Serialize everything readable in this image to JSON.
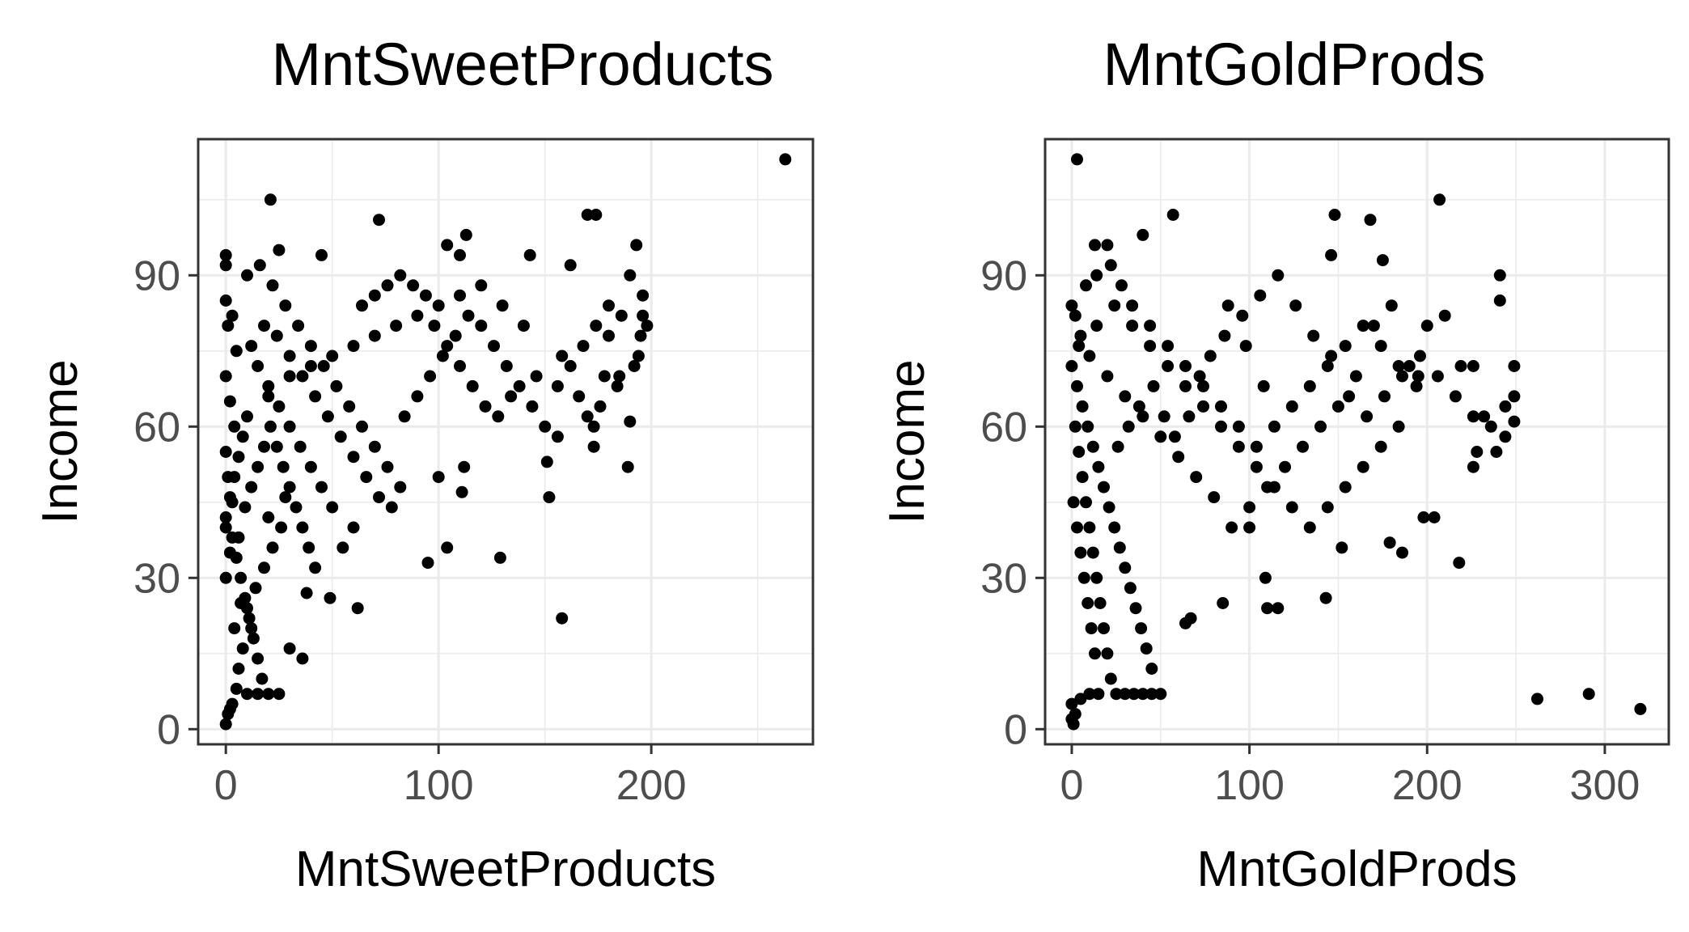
{
  "chart_data": [
    {
      "type": "scatter",
      "title": "MntSweetProducts",
      "xlabel": "MntSweetProducts",
      "ylabel": "Income",
      "xlim": [
        -13,
        276
      ],
      "ylim": [
        -3,
        117
      ],
      "x_ticks": [
        0,
        100,
        200
      ],
      "y_ticks": [
        0,
        30,
        60,
        90
      ],
      "grid": true,
      "point_color": "#000000",
      "points": [
        [
          263,
          113
        ],
        [
          21,
          105
        ],
        [
          72,
          101
        ],
        [
          170,
          102
        ],
        [
          174,
          102
        ],
        [
          0,
          94
        ],
        [
          0,
          92
        ],
        [
          25,
          95
        ],
        [
          45,
          94
        ],
        [
          113,
          98
        ],
        [
          104,
          96
        ],
        [
          110,
          94
        ],
        [
          143,
          94
        ],
        [
          162,
          92
        ],
        [
          193,
          96
        ],
        [
          190,
          90
        ],
        [
          196,
          86
        ],
        [
          196,
          82
        ],
        [
          180,
          84
        ],
        [
          195,
          78
        ],
        [
          194,
          74
        ],
        [
          178,
          70
        ],
        [
          185,
          70
        ],
        [
          190,
          61
        ],
        [
          189,
          52
        ],
        [
          173,
          56
        ],
        [
          173,
          60
        ],
        [
          170,
          62
        ],
        [
          156,
          58
        ],
        [
          151,
          53
        ],
        [
          152,
          46
        ],
        [
          158,
          22
        ],
        [
          129,
          34
        ],
        [
          104,
          36
        ],
        [
          95,
          33
        ],
        [
          111,
          47
        ],
        [
          100,
          50
        ],
        [
          112,
          52
        ],
        [
          62,
          24
        ],
        [
          49,
          26
        ],
        [
          38,
          27
        ],
        [
          36,
          14
        ],
        [
          30,
          16
        ],
        [
          25,
          7
        ],
        [
          20,
          7
        ],
        [
          15,
          7
        ],
        [
          10,
          7
        ],
        [
          5,
          8
        ],
        [
          3,
          5
        ],
        [
          2,
          4
        ],
        [
          1,
          3
        ],
        [
          0,
          1
        ],
        [
          6,
          12
        ],
        [
          8,
          16
        ],
        [
          12,
          20
        ],
        [
          4,
          20
        ],
        [
          7,
          25
        ],
        [
          0,
          30
        ],
        [
          2,
          35
        ],
        [
          0,
          40
        ],
        [
          3,
          45
        ],
        [
          1,
          50
        ],
        [
          0,
          55
        ],
        [
          4,
          60
        ],
        [
          2,
          65
        ],
        [
          0,
          70
        ],
        [
          5,
          75
        ],
        [
          1,
          80
        ],
        [
          3,
          82
        ],
        [
          0,
          85
        ],
        [
          10,
          90
        ],
        [
          16,
          92
        ],
        [
          22,
          88
        ],
        [
          28,
          84
        ],
        [
          34,
          80
        ],
        [
          40,
          76
        ],
        [
          46,
          72
        ],
        [
          52,
          68
        ],
        [
          58,
          64
        ],
        [
          64,
          60
        ],
        [
          70,
          56
        ],
        [
          76,
          52
        ],
        [
          82,
          48
        ],
        [
          60,
          40
        ],
        [
          55,
          36
        ],
        [
          50,
          44
        ],
        [
          45,
          48
        ],
        [
          40,
          52
        ],
        [
          35,
          56
        ],
        [
          30,
          60
        ],
        [
          25,
          64
        ],
        [
          20,
          68
        ],
        [
          15,
          72
        ],
        [
          12,
          76
        ],
        [
          18,
          80
        ],
        [
          24,
          78
        ],
        [
          30,
          74
        ],
        [
          36,
          70
        ],
        [
          42,
          66
        ],
        [
          48,
          62
        ],
        [
          54,
          58
        ],
        [
          60,
          54
        ],
        [
          66,
          50
        ],
        [
          72,
          46
        ],
        [
          78,
          44
        ],
        [
          84,
          62
        ],
        [
          90,
          66
        ],
        [
          96,
          70
        ],
        [
          102,
          74
        ],
        [
          108,
          78
        ],
        [
          114,
          82
        ],
        [
          120,
          80
        ],
        [
          126,
          76
        ],
        [
          132,
          72
        ],
        [
          138,
          68
        ],
        [
          144,
          64
        ],
        [
          150,
          60
        ],
        [
          156,
          68
        ],
        [
          162,
          72
        ],
        [
          168,
          76
        ],
        [
          174,
          80
        ],
        [
          180,
          78
        ],
        [
          186,
          82
        ],
        [
          140,
          80
        ],
        [
          130,
          84
        ],
        [
          120,
          88
        ],
        [
          110,
          86
        ],
        [
          100,
          84
        ],
        [
          90,
          82
        ],
        [
          80,
          80
        ],
        [
          70,
          78
        ],
        [
          60,
          76
        ],
        [
          50,
          74
        ],
        [
          40,
          72
        ],
        [
          30,
          70
        ],
        [
          20,
          66
        ],
        [
          10,
          62
        ],
        [
          8,
          58
        ],
        [
          6,
          54
        ],
        [
          4,
          50
        ],
        [
          2,
          46
        ],
        [
          0,
          42
        ],
        [
          3,
          38
        ],
        [
          5,
          34
        ],
        [
          7,
          30
        ],
        [
          9,
          26
        ],
        [
          11,
          22
        ],
        [
          13,
          18
        ],
        [
          15,
          14
        ],
        [
          17,
          10
        ],
        [
          6,
          38
        ],
        [
          9,
          44
        ],
        [
          12,
          48
        ],
        [
          15,
          52
        ],
        [
          18,
          56
        ],
        [
          21,
          60
        ],
        [
          24,
          56
        ],
        [
          27,
          52
        ],
        [
          30,
          48
        ],
        [
          33,
          44
        ],
        [
          36,
          40
        ],
        [
          39,
          36
        ],
        [
          42,
          32
        ],
        [
          26,
          40
        ],
        [
          22,
          36
        ],
        [
          18,
          32
        ],
        [
          14,
          28
        ],
        [
          10,
          24
        ],
        [
          20,
          42
        ],
        [
          28,
          46
        ],
        [
          64,
          84
        ],
        [
          70,
          86
        ],
        [
          76,
          88
        ],
        [
          82,
          90
        ],
        [
          88,
          88
        ],
        [
          94,
          86
        ],
        [
          98,
          80
        ],
        [
          104,
          76
        ],
        [
          110,
          72
        ],
        [
          116,
          68
        ],
        [
          122,
          64
        ],
        [
          128,
          62
        ],
        [
          134,
          66
        ],
        [
          146,
          70
        ],
        [
          158,
          74
        ],
        [
          166,
          66
        ],
        [
          176,
          64
        ],
        [
          184,
          68
        ],
        [
          192,
          72
        ],
        [
          198,
          80
        ]
      ]
    },
    {
      "type": "scatter",
      "title": "MntGoldProds",
      "xlabel": "MntGoldProds",
      "ylabel": "Income",
      "xlim": [
        -15,
        336
      ],
      "ylim": [
        -3,
        117
      ],
      "x_ticks": [
        0,
        100,
        200,
        300
      ],
      "y_ticks": [
        0,
        30,
        60,
        90
      ],
      "grid": true,
      "point_color": "#000000",
      "points": [
        [
          3,
          113
        ],
        [
          207,
          105
        ],
        [
          148,
          102
        ],
        [
          168,
          101
        ],
        [
          57,
          102
        ],
        [
          13,
          96
        ],
        [
          20,
          96
        ],
        [
          40,
          98
        ],
        [
          146,
          94
        ],
        [
          175,
          93
        ],
        [
          241,
          90
        ],
        [
          241,
          85
        ],
        [
          249,
          72
        ],
        [
          249,
          66
        ],
        [
          249,
          61
        ],
        [
          239,
          55
        ],
        [
          244,
          64
        ],
        [
          219,
          72
        ],
        [
          226,
          72
        ],
        [
          232,
          62
        ],
        [
          228,
          55
        ],
        [
          226,
          52
        ],
        [
          218,
          33
        ],
        [
          204,
          42
        ],
        [
          198,
          42
        ],
        [
          186,
          35
        ],
        [
          179,
          37
        ],
        [
          152,
          36
        ],
        [
          143,
          26
        ],
        [
          116,
          24
        ],
        [
          110,
          24
        ],
        [
          109,
          30
        ],
        [
          100,
          40
        ],
        [
          85,
          25
        ],
        [
          67,
          22
        ],
        [
          64,
          21
        ],
        [
          50,
          7
        ],
        [
          45,
          7
        ],
        [
          40,
          7
        ],
        [
          35,
          7
        ],
        [
          30,
          7
        ],
        [
          25,
          7
        ],
        [
          15,
          7
        ],
        [
          10,
          7
        ],
        [
          5,
          6
        ],
        [
          2,
          3
        ],
        [
          1,
          1
        ],
        [
          0,
          2
        ],
        [
          0,
          5
        ],
        [
          262,
          6
        ],
        [
          291,
          7
        ],
        [
          320,
          4
        ],
        [
          195,
          70
        ],
        [
          190,
          72
        ],
        [
          200,
          80
        ],
        [
          210,
          82
        ],
        [
          180,
          84
        ],
        [
          170,
          80
        ],
        [
          160,
          70
        ],
        [
          150,
          64
        ],
        [
          140,
          60
        ],
        [
          130,
          56
        ],
        [
          120,
          52
        ],
        [
          110,
          48
        ],
        [
          100,
          44
        ],
        [
          90,
          40
        ],
        [
          80,
          46
        ],
        [
          70,
          50
        ],
        [
          60,
          54
        ],
        [
          50,
          58
        ],
        [
          40,
          62
        ],
        [
          30,
          66
        ],
        [
          20,
          70
        ],
        [
          10,
          74
        ],
        [
          5,
          78
        ],
        [
          2,
          82
        ],
        [
          0,
          84
        ],
        [
          8,
          88
        ],
        [
          14,
          90
        ],
        [
          22,
          92
        ],
        [
          28,
          88
        ],
        [
          34,
          84
        ],
        [
          44,
          80
        ],
        [
          54,
          76
        ],
        [
          64,
          72
        ],
        [
          74,
          68
        ],
        [
          84,
          64
        ],
        [
          94,
          60
        ],
        [
          104,
          56
        ],
        [
          114,
          60
        ],
        [
          124,
          64
        ],
        [
          134,
          68
        ],
        [
          144,
          72
        ],
        [
          154,
          76
        ],
        [
          164,
          80
        ],
        [
          174,
          76
        ],
        [
          184,
          72
        ],
        [
          194,
          68
        ],
        [
          184,
          60
        ],
        [
          174,
          56
        ],
        [
          164,
          52
        ],
        [
          154,
          48
        ],
        [
          144,
          44
        ],
        [
          134,
          40
        ],
        [
          124,
          44
        ],
        [
          114,
          48
        ],
        [
          104,
          52
        ],
        [
          94,
          56
        ],
        [
          84,
          60
        ],
        [
          74,
          64
        ],
        [
          64,
          68
        ],
        [
          54,
          72
        ],
        [
          44,
          76
        ],
        [
          34,
          80
        ],
        [
          24,
          84
        ],
        [
          14,
          80
        ],
        [
          4,
          76
        ],
        [
          0,
          72
        ],
        [
          3,
          68
        ],
        [
          6,
          64
        ],
        [
          9,
          60
        ],
        [
          12,
          56
        ],
        [
          15,
          52
        ],
        [
          18,
          48
        ],
        [
          21,
          44
        ],
        [
          24,
          40
        ],
        [
          27,
          36
        ],
        [
          30,
          32
        ],
        [
          33,
          28
        ],
        [
          36,
          24
        ],
        [
          39,
          20
        ],
        [
          42,
          16
        ],
        [
          45,
          12
        ],
        [
          2,
          60
        ],
        [
          4,
          55
        ],
        [
          6,
          50
        ],
        [
          8,
          45
        ],
        [
          10,
          40
        ],
        [
          12,
          35
        ],
        [
          14,
          30
        ],
        [
          16,
          25
        ],
        [
          18,
          20
        ],
        [
          20,
          15
        ],
        [
          22,
          10
        ],
        [
          1,
          45
        ],
        [
          3,
          40
        ],
        [
          5,
          35
        ],
        [
          7,
          30
        ],
        [
          9,
          25
        ],
        [
          11,
          20
        ],
        [
          13,
          15
        ],
        [
          26,
          56
        ],
        [
          32,
          60
        ],
        [
          38,
          64
        ],
        [
          46,
          68
        ],
        [
          52,
          62
        ],
        [
          58,
          58
        ],
        [
          66,
          62
        ],
        [
          72,
          70
        ],
        [
          78,
          74
        ],
        [
          86,
          78
        ],
        [
          96,
          82
        ],
        [
          106,
          86
        ],
        [
          116,
          90
        ],
        [
          126,
          84
        ],
        [
          136,
          78
        ],
        [
          146,
          74
        ],
        [
          156,
          66
        ],
        [
          166,
          62
        ],
        [
          176,
          66
        ],
        [
          186,
          70
        ],
        [
          196,
          74
        ],
        [
          206,
          70
        ],
        [
          216,
          66
        ],
        [
          226,
          62
        ],
        [
          236,
          60
        ],
        [
          244,
          58
        ],
        [
          88,
          84
        ],
        [
          98,
          76
        ],
        [
          108,
          68
        ]
      ]
    }
  ]
}
